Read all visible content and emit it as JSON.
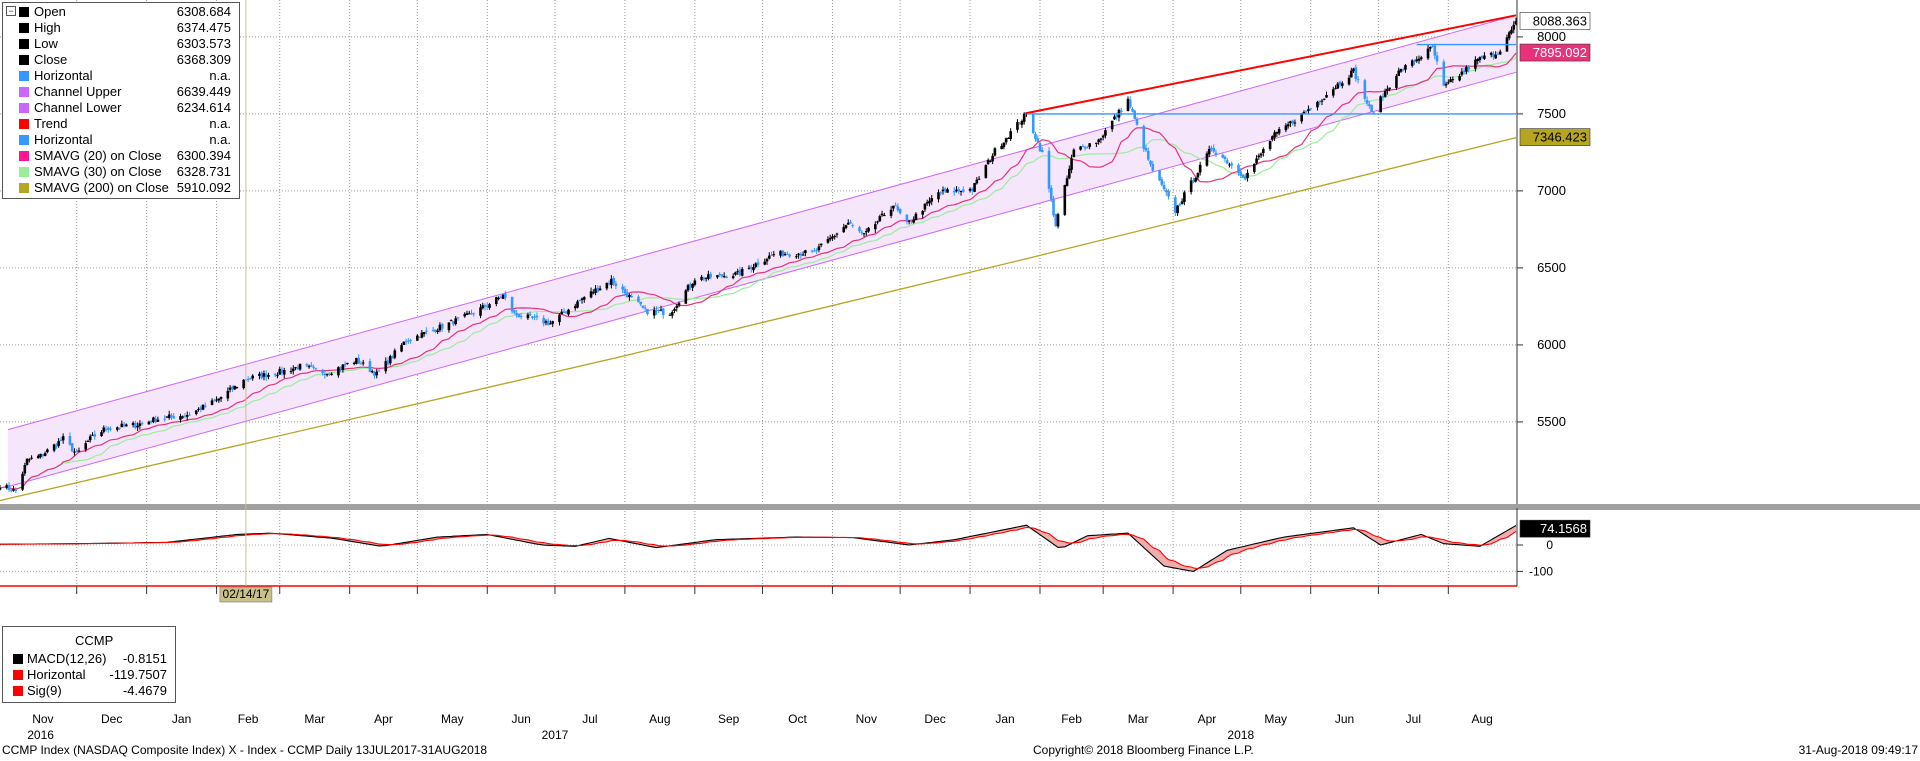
{
  "legend": {
    "items": [
      {
        "name": "Open",
        "value": "6308.684",
        "color": "#000000"
      },
      {
        "name": "High",
        "value": "6374.475",
        "color": "#000000"
      },
      {
        "name": "Low",
        "value": "6303.573",
        "color": "#000000"
      },
      {
        "name": "Close",
        "value": "6368.309",
        "color": "#000000"
      },
      {
        "name": "Horizontal",
        "value": "n.a.",
        "color": "#3399ff"
      },
      {
        "name": "Channel Upper",
        "value": "6639.449",
        "color": "#cc66ff"
      },
      {
        "name": "Channel Lower",
        "value": "6234.614",
        "color": "#cc66ff"
      },
      {
        "name": "Trend",
        "value": "n.a.",
        "color": "#ff0000"
      },
      {
        "name": "Horizontal",
        "value": "n.a.",
        "color": "#3399ff"
      },
      {
        "name": "SMAVG (20)  on Close",
        "value": "6300.394",
        "color": "#ff1493"
      },
      {
        "name": "SMAVG (30)  on Close",
        "value": "6328.731",
        "color": "#99ee99"
      },
      {
        "name": "SMAVG (200)  on Close",
        "value": "5910.092",
        "color": "#b5a520"
      }
    ]
  },
  "macd_legend": {
    "title": "CCMP",
    "items": [
      {
        "name": "MACD(12,26)",
        "value": "-0.8151",
        "color": "#000000"
      },
      {
        "name": "Horizontal",
        "value": "-119.7507",
        "color": "#ff0000"
      },
      {
        "name": "Sig(9)",
        "value": "-4.4679",
        "color": "#ff0000"
      }
    ]
  },
  "cursor_date": "02/14/17",
  "footer": {
    "left": "CCMP Index (NASDAQ Composite Index) X - Index - CCMP  Daily 13JUL2017-31AUG2018",
    "center": "Copyright© 2018 Bloomberg Finance L.P.",
    "right": "31-Aug-2018 09:49:17"
  },
  "colors": {
    "up": "#000000",
    "down": "#3399ff",
    "channel": "#cc66ff",
    "channel_fill": "#f6e6fc",
    "trend": "#ff0000",
    "horizontal": "#3399ff",
    "sma20": "#e8327a",
    "sma30": "#99ee99",
    "sma200": "#b5a520",
    "macd": "#000000",
    "signal": "#ff0000",
    "hist": "#f0a0a0",
    "axis": "#ff0000"
  },
  "chart_data": [
    {
      "type": "candlestick",
      "y_ticks": [
        5500,
        6000,
        6500,
        7000,
        7500,
        8000
      ],
      "ylim": [
        4980,
        8220
      ],
      "months": [
        "Nov",
        "Dec",
        "Jan",
        "Feb",
        "Mar",
        "Apr",
        "May",
        "Jun",
        "Jul",
        "Aug",
        "Sep",
        "Oct",
        "Nov",
        "Dec",
        "Jan",
        "Feb",
        "Mar",
        "Apr",
        "May",
        "Jun",
        "Jul",
        "Aug"
      ],
      "years": [
        "2016",
        "2017",
        "2018"
      ],
      "x_range": [
        "2016-10-28",
        "2018-08-31"
      ],
      "price_points": [
        [
          "2016-10-28",
          5090
        ],
        [
          "2016-11-04",
          5050
        ],
        [
          "2016-11-09",
          5250
        ],
        [
          "2016-11-15",
          5280
        ],
        [
          "2016-11-25",
          5390
        ],
        [
          "2016-12-01",
          5290
        ],
        [
          "2016-12-07",
          5390
        ],
        [
          "2016-12-14",
          5460
        ],
        [
          "2016-12-27",
          5480
        ],
        [
          "2017-01-06",
          5520
        ],
        [
          "2017-01-20",
          5550
        ],
        [
          "2017-02-01",
          5640
        ],
        [
          "2017-02-14",
          5780
        ],
        [
          "2017-02-28",
          5820
        ],
        [
          "2017-03-10",
          5860
        ],
        [
          "2017-03-22",
          5820
        ],
        [
          "2017-04-04",
          5900
        ],
        [
          "2017-04-13",
          5810
        ],
        [
          "2017-04-26",
          6030
        ],
        [
          "2017-05-12",
          6120
        ],
        [
          "2017-05-25",
          6200
        ],
        [
          "2017-06-08",
          6320
        ],
        [
          "2017-06-13",
          6200
        ],
        [
          "2017-06-29",
          6140
        ],
        [
          "2017-07-14",
          6310
        ],
        [
          "2017-07-26",
          6420
        ],
        [
          "2017-08-10",
          6220
        ],
        [
          "2017-08-21",
          6210
        ],
        [
          "2017-09-01",
          6430
        ],
        [
          "2017-09-20",
          6460
        ],
        [
          "2017-10-06",
          6590
        ],
        [
          "2017-10-24",
          6600
        ],
        [
          "2017-11-08",
          6790
        ],
        [
          "2017-11-15",
          6710
        ],
        [
          "2017-11-28",
          6910
        ],
        [
          "2017-12-04",
          6780
        ],
        [
          "2017-12-18",
          6990
        ],
        [
          "2018-01-02",
          7010
        ],
        [
          "2018-01-12",
          7260
        ],
        [
          "2018-01-26",
          7500
        ],
        [
          "2018-02-02",
          7240
        ],
        [
          "2018-02-08",
          6780
        ],
        [
          "2018-02-16",
          7260
        ],
        [
          "2018-02-27",
          7330
        ],
        [
          "2018-03-12",
          7590
        ],
        [
          "2018-03-22",
          7160
        ],
        [
          "2018-04-02",
          6870
        ],
        [
          "2018-04-18",
          7280
        ],
        [
          "2018-05-03",
          7090
        ],
        [
          "2018-05-15",
          7350
        ],
        [
          "2018-06-01",
          7540
        ],
        [
          "2018-06-20",
          7780
        ],
        [
          "2018-06-28",
          7500
        ],
        [
          "2018-07-09",
          7760
        ],
        [
          "2018-07-25",
          7930
        ],
        [
          "2018-07-30",
          7670
        ],
        [
          "2018-08-14",
          7850
        ],
        [
          "2018-08-23",
          7900
        ],
        [
          "2018-08-31",
          8088
        ]
      ],
      "sma200_points": [
        [
          "2016-10-28",
          4990
        ],
        [
          "2017-08-01",
          5930
        ],
        [
          "2018-01-26",
          6560
        ],
        [
          "2018-08-31",
          7346
        ]
      ],
      "channel": {
        "start": [
          "2016-10-28",
          5080,
          5450
        ],
        "end": [
          "2018-08-31",
          7770,
          8140
        ]
      },
      "trend": [
        [
          "2018-01-26",
          7505
        ],
        [
          "2018-08-31",
          8140
        ]
      ],
      "horizontal_1": [
        [
          "2018-01-26",
          7500
        ],
        [
          "2018-08-31",
          7500
        ]
      ],
      "horizontal_2": [
        [
          "2018-07-18",
          7950
        ],
        [
          "2018-08-31",
          7950
        ]
      ],
      "labels": {
        "last": "8088.363",
        "sma20_tag": "7895.092",
        "sma200_tag": "7346.423"
      }
    },
    {
      "type": "line",
      "name": "MACD",
      "y_ticks": [
        0,
        -100
      ],
      "ylim": [
        -125,
        125
      ],
      "macd_points": [
        [
          "2016-10-28",
          3
        ],
        [
          "2016-12-01",
          5
        ],
        [
          "2017-01-10",
          10
        ],
        [
          "2017-02-10",
          40
        ],
        [
          "2017-02-25",
          45
        ],
        [
          "2017-03-25",
          25
        ],
        [
          "2017-04-15",
          -5
        ],
        [
          "2017-05-10",
          30
        ],
        [
          "2017-06-01",
          40
        ],
        [
          "2017-06-25",
          0
        ],
        [
          "2017-07-10",
          -5
        ],
        [
          "2017-07-25",
          25
        ],
        [
          "2017-08-15",
          -10
        ],
        [
          "2017-09-10",
          20
        ],
        [
          "2017-10-15",
          30
        ],
        [
          "2017-11-10",
          28
        ],
        [
          "2017-12-05",
          0
        ],
        [
          "2017-12-25",
          20
        ],
        [
          "2018-01-26",
          75
        ],
        [
          "2018-02-10",
          -15
        ],
        [
          "2018-02-22",
          35
        ],
        [
          "2018-03-12",
          45
        ],
        [
          "2018-03-28",
          -80
        ],
        [
          "2018-04-10",
          -100
        ],
        [
          "2018-04-25",
          -20
        ],
        [
          "2018-05-20",
          30
        ],
        [
          "2018-06-20",
          65
        ],
        [
          "2018-07-02",
          0
        ],
        [
          "2018-07-20",
          40
        ],
        [
          "2018-07-30",
          5
        ],
        [
          "2018-08-15",
          -5
        ],
        [
          "2018-08-31",
          74
        ]
      ],
      "value_label": "74.1568"
    }
  ]
}
